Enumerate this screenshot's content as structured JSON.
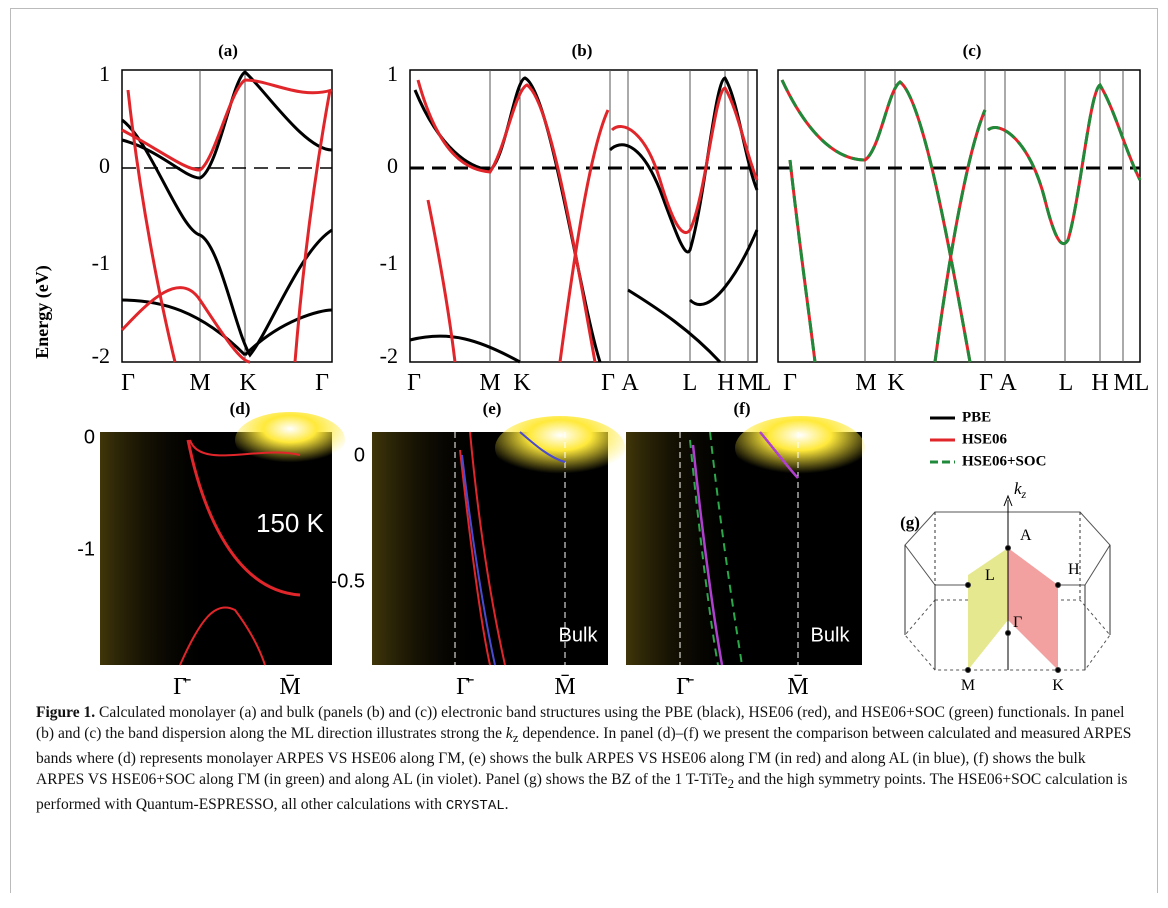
{
  "figure": {
    "y_axis_label": "Energy (eV)",
    "band_panels": [
      {
        "label": "(a)",
        "yticks": [
          "1",
          "0",
          "-1",
          "-2"
        ],
        "kpoints": [
          "Γ",
          "M",
          "K",
          "Γ"
        ]
      },
      {
        "label": "(b)",
        "yticks": [
          "1",
          "0",
          "-1",
          "-2"
        ],
        "kpoints": [
          "Γ",
          "M",
          "K",
          "Γ",
          "A",
          "L",
          "H",
          "M",
          "L"
        ]
      },
      {
        "label": "(c)",
        "kpoints": [
          "Γ",
          "M",
          "K",
          "Γ",
          "A",
          "L",
          "H",
          "M",
          "L"
        ]
      }
    ],
    "arpes_panels": [
      {
        "label": "(d)",
        "yticks": [
          "0",
          "-1"
        ],
        "kpoints": [
          "Γ̄",
          "M̄"
        ],
        "annotation": "150 K"
      },
      {
        "label": "(e)",
        "yticks": [
          "0",
          "-0.5"
        ],
        "kpoints": [
          "Γ̄",
          "M̄"
        ],
        "annotation": "Bulk"
      },
      {
        "label": "(f)",
        "kpoints": [
          "Γ̄",
          "M̄"
        ],
        "annotation": "Bulk"
      }
    ],
    "legend": [
      "PBE",
      "HSE06",
      "HSE06+SOC"
    ],
    "bz": {
      "label": "(g)",
      "axis": [
        "k",
        "z"
      ],
      "points": [
        "A",
        "L",
        "H",
        "Γ",
        "M",
        "K"
      ]
    },
    "caption": [
      "Figure 1.",
      " Calculated monolayer (a) and bulk (panels (b) and (c)) electronic band structures using the PBE (black), HSE06 (red), and HSE06+SOC (green) functionals. In panel (b) and (c) the band dispersion along the ML direction illustrates strong the ",
      "k",
      "z",
      " dependence. In panel (d)–(f) we present the comparison between calculated and measured ARPES bands where (d) represents monolayer ARPES VS HSE06 along ΓM, (e) shows the bulk ARPES VS HSE06 along ΓM (in red) and along AL (in blue), (f) shows the bulk ARPES VS HSE06+SOC along ΓM (in green) and along AL (in violet). Panel (g) shows the BZ of the 1 T-TiTe",
      "2",
      " and the high symmetry points. The HSE06+SOC calculation is performed with Quantum-ESPRESSO, all other calculations with ",
      "CRYSTAL",
      "."
    ]
  }
}
